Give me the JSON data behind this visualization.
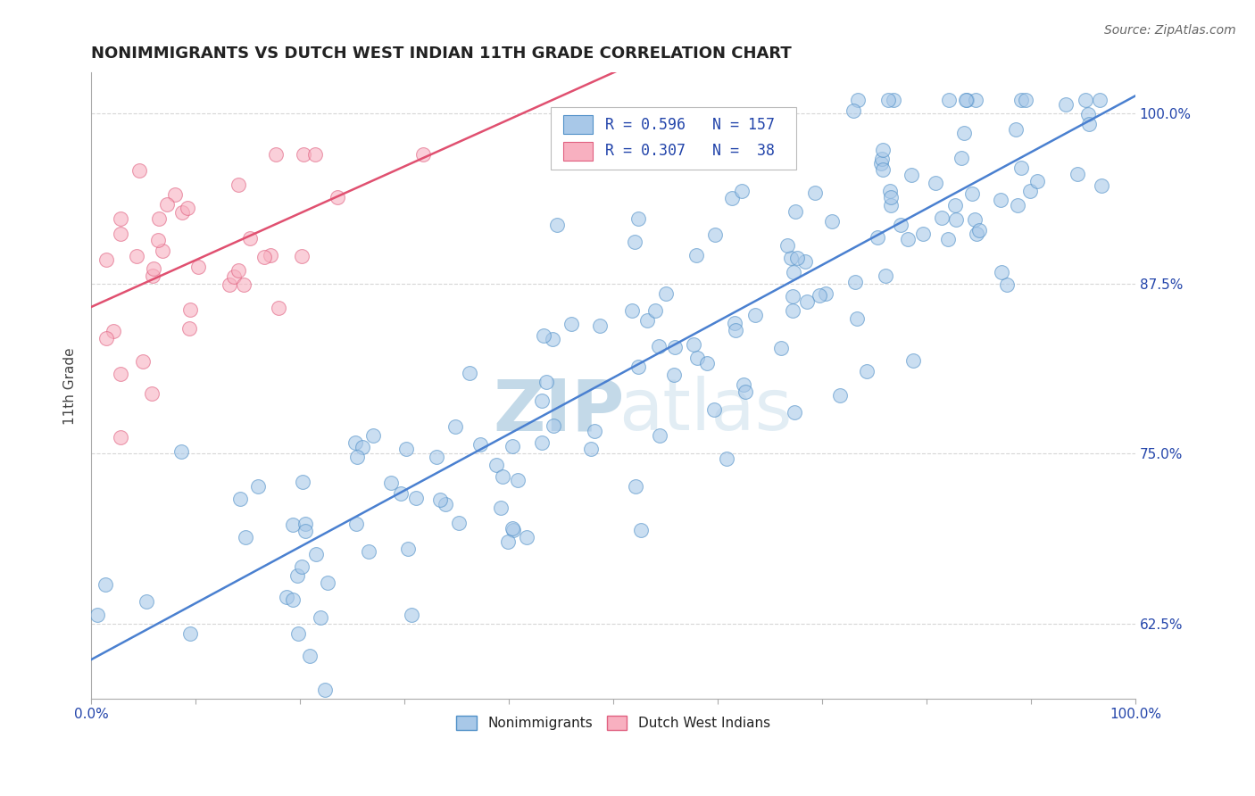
{
  "title": "NONIMMIGRANTS VS DUTCH WEST INDIAN 11TH GRADE CORRELATION CHART",
  "source_text": "Source: ZipAtlas.com",
  "ylabel": "11th Grade",
  "ylabel_right_ticks": [
    "62.5%",
    "75.0%",
    "87.5%",
    "100.0%"
  ],
  "ylabel_right_values": [
    0.625,
    0.75,
    0.875,
    1.0
  ],
  "xlim": [
    0.0,
    1.0
  ],
  "ylim": [
    0.57,
    1.03
  ],
  "r_blue": 0.596,
  "n_blue": 157,
  "r_pink": 0.307,
  "n_pink": 38,
  "blue_scatter_face": "#a8c8e8",
  "blue_scatter_edge": "#5090c8",
  "pink_scatter_face": "#f8b0c0",
  "pink_scatter_edge": "#e06080",
  "blue_line_color": "#4a80d0",
  "pink_line_color": "#e05070",
  "title_fontsize": 13,
  "watermark_zip_color": "#7aaccc",
  "watermark_atlas_color": "#c0d8e8",
  "background_color": "#ffffff"
}
